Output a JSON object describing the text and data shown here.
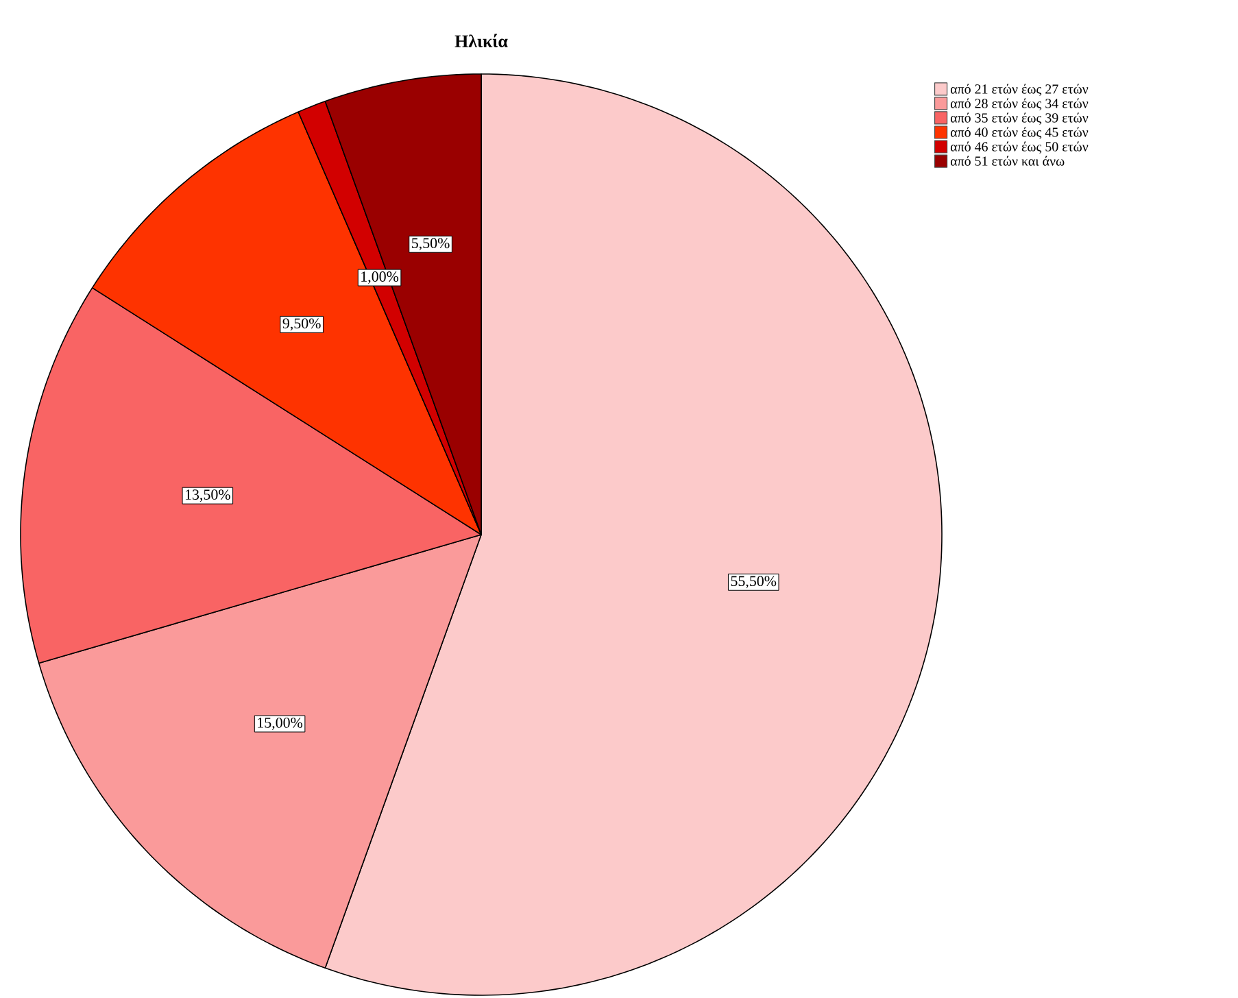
{
  "chart_data": {
    "type": "pie",
    "title": "Ηλικία",
    "categories": [
      "από 21 ετών έως 27 ετών",
      "από 28 ετών έως 34 ετών",
      "από 35 ετών έως 39 ετών",
      "από 40 ετών έως 45 ετών",
      "από 46 ετών έως 50 ετών",
      "από 51 ετών και άνω"
    ],
    "values": [
      55.5,
      15,
      13.5,
      9.5,
      1,
      5.5
    ],
    "colors": [
      "#fccaca",
      "#fa9a9a",
      "#f96464",
      "#fe3300",
      "#d20000",
      "#9a0000"
    ],
    "value_labels": [
      "55,50%",
      "15,00%",
      "13,50%",
      "9,50%",
      "1,00%",
      "5,50%"
    ],
    "legend": "top right"
  }
}
